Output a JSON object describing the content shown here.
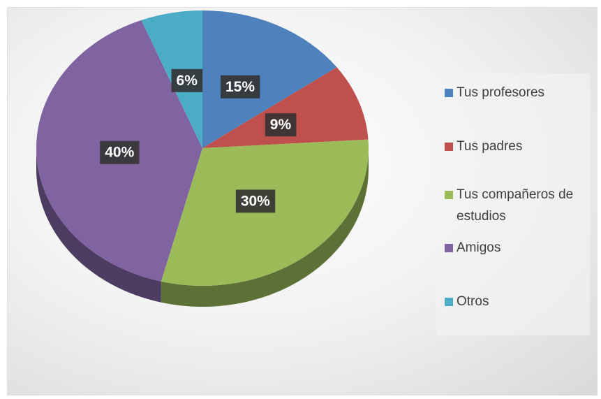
{
  "chart_data": {
    "type": "pie",
    "categories": [
      "Tus profesores",
      "Tus padres",
      "Tus compañeros de estudios",
      "Amigos",
      "Otros"
    ],
    "values": [
      15,
      9,
      30,
      40,
      6
    ],
    "value_labels": [
      "15%",
      "9%",
      "30%",
      "40%",
      "6%"
    ],
    "colors": [
      "#4f81bd",
      "#c0504d",
      "#9bbb59",
      "#8064a2",
      "#4bacc6"
    ],
    "legend": "right"
  }
}
